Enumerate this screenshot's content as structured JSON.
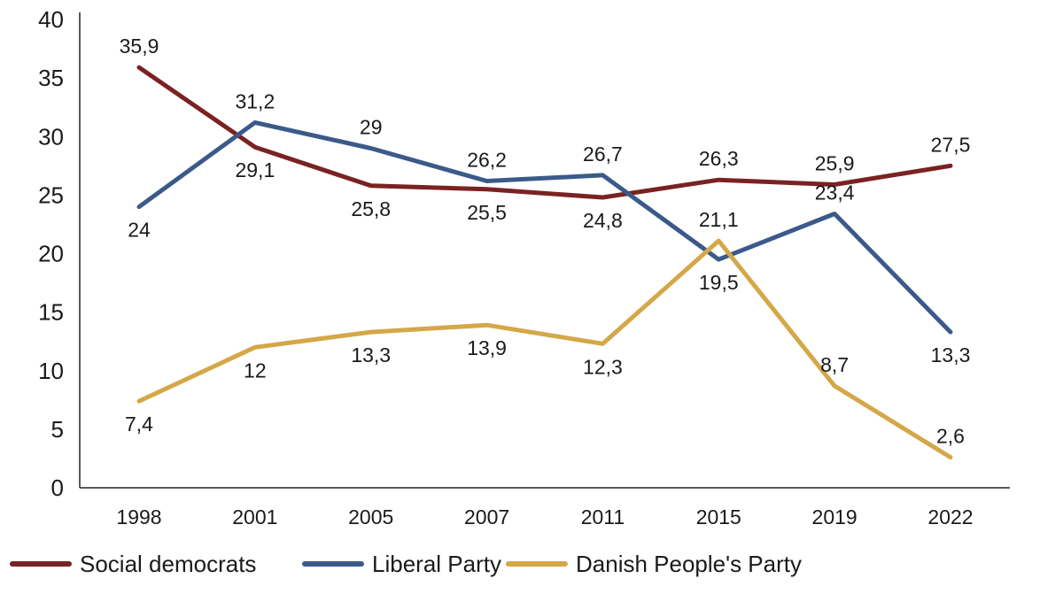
{
  "chart_data": {
    "type": "line",
    "title": "",
    "xlabel": "",
    "ylabel": "",
    "categories": [
      "1998",
      "2001",
      "2005",
      "2007",
      "2011",
      "2015",
      "2019",
      "2022"
    ],
    "ylim": [
      0,
      40
    ],
    "yticks": [
      0,
      5,
      10,
      15,
      20,
      25,
      30,
      35,
      40
    ],
    "grid": false,
    "legend_position": "bottom-left",
    "series": [
      {
        "name": "Social democrats",
        "color": "#7a2222",
        "values": [
          35.9,
          29.1,
          25.8,
          25.5,
          24.8,
          26.3,
          25.9,
          27.5
        ],
        "labels": [
          "35,9",
          "29,1",
          "25,8",
          "25,5",
          "24,8",
          "26,3",
          "25,9",
          "27,5"
        ]
      },
      {
        "name": "Liberal Party",
        "color": "#3b5a8a",
        "values": [
          24,
          31.2,
          29,
          26.2,
          26.7,
          19.5,
          23.4,
          13.3
        ],
        "labels": [
          "24",
          "31,2",
          "29",
          "26,2",
          "26,7",
          "19,5",
          "23,4",
          "13,3"
        ]
      },
      {
        "name": "Danish People's Party",
        "color": "#d4a748",
        "values": [
          7.4,
          12,
          13.3,
          13.9,
          12.3,
          21.1,
          8.7,
          2.6
        ],
        "labels": [
          "7,4",
          "12",
          "13,3",
          "13,9",
          "12,3",
          "21,1",
          "8,7",
          "2,6"
        ]
      }
    ]
  }
}
